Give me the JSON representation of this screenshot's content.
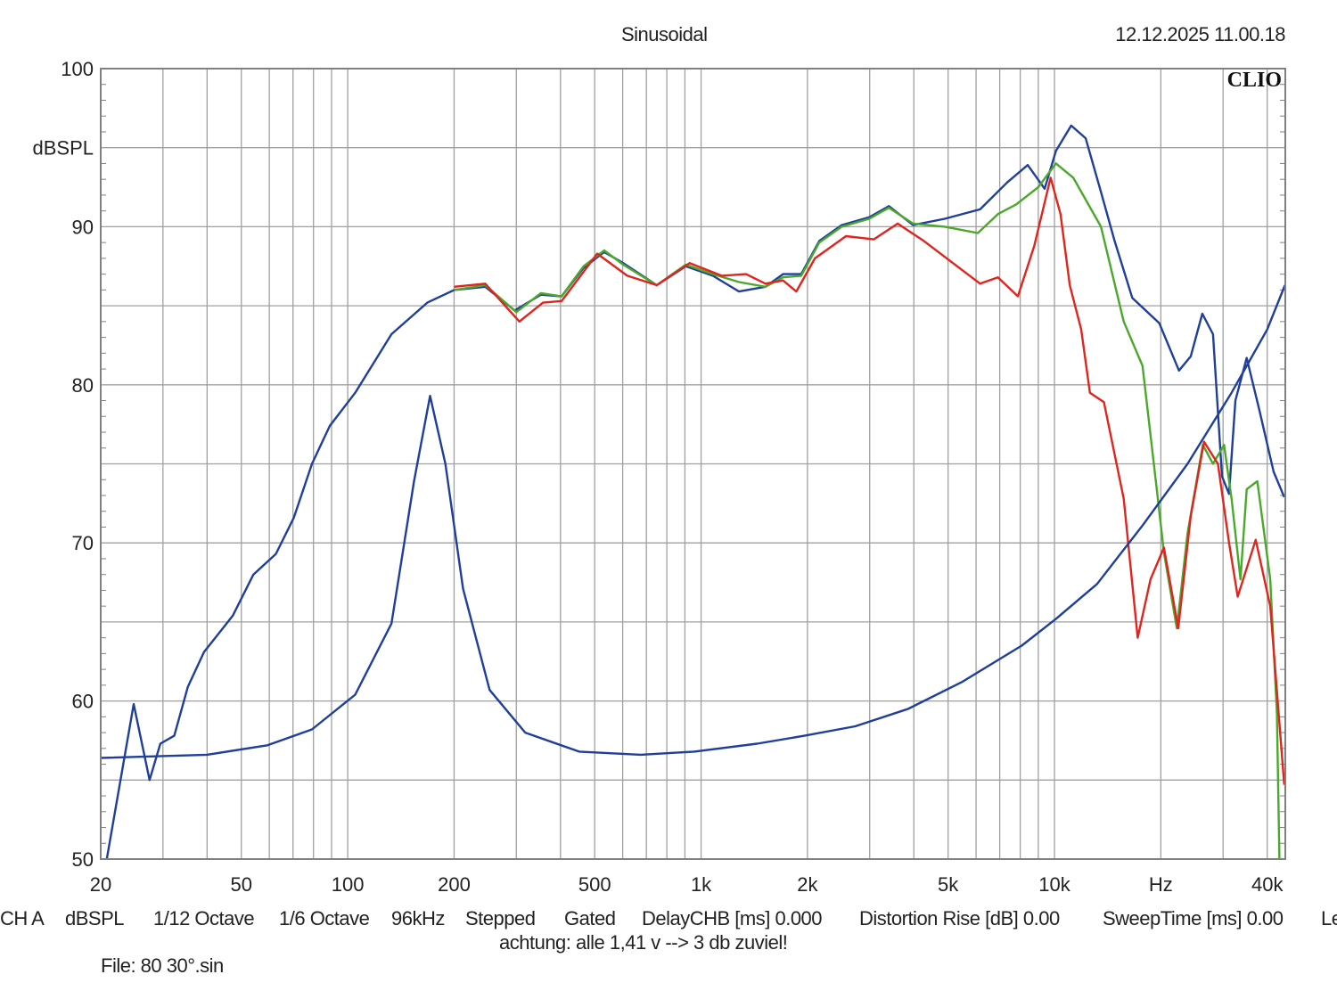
{
  "header": {
    "title": "Sinusoidal",
    "timestamp": "12.12.2025 11.00.18",
    "logo": "CLIO"
  },
  "footer": {
    "items": [
      "CH A",
      "dBSPL",
      "1/12 Octave",
      "1/6 Octave",
      "96kHz",
      "Stepped",
      "Gated",
      "DelayCHB [ms] 0.000",
      "Distortion Rise [dB] 0.00",
      "SweepTime [ms] 0.00",
      "Le"
    ],
    "note": "achtung: alle 1,41 v --> 3 db zuviel!",
    "file": "File: 80 30°.sin"
  },
  "chart_data": {
    "type": "line",
    "title": "Sinusoidal",
    "xlabel": "Hz",
    "ylabel": "dBSPL",
    "xscale": "log",
    "xlim": [
      20,
      45000
    ],
    "ylim": [
      50,
      100
    ],
    "grid": true,
    "x_ticks": [
      {
        "v": 20,
        "label": "20"
      },
      {
        "v": 50,
        "label": "50"
      },
      {
        "v": 100,
        "label": "100"
      },
      {
        "v": 200,
        "label": "200"
      },
      {
        "v": 500,
        "label": "500"
      },
      {
        "v": 1000,
        "label": "1k"
      },
      {
        "v": 2000,
        "label": "2k"
      },
      {
        "v": 5000,
        "label": "5k"
      },
      {
        "v": 10000,
        "label": "10k"
      },
      {
        "v": 20000,
        "label": "Hz"
      },
      {
        "v": 40000,
        "label": "40k"
      }
    ],
    "y_ticks": [
      {
        "v": 100,
        "label": "100"
      },
      {
        "v": 95,
        "label": "dBSPL"
      },
      {
        "v": 90,
        "label": "90"
      },
      {
        "v": 80,
        "label": "80"
      },
      {
        "v": 70,
        "label": "70"
      },
      {
        "v": 60,
        "label": "60"
      },
      {
        "v": 50,
        "label": "50"
      }
    ],
    "colors": {
      "grid": "#a0a0a0",
      "frame": "#808080"
    },
    "series": [
      {
        "name": "response-blue",
        "color": "#1f3f9a",
        "points": [
          [
            20.8,
            50
          ],
          [
            24.8,
            59.8
          ],
          [
            27.5,
            55
          ],
          [
            29.5,
            57.3
          ],
          [
            32.3,
            57.8
          ],
          [
            35.3,
            60.9
          ],
          [
            39.2,
            63.1
          ],
          [
            47.3,
            65.4
          ],
          [
            54.1,
            68
          ],
          [
            62.6,
            69.3
          ],
          [
            70.4,
            71.6
          ],
          [
            79.2,
            75
          ],
          [
            89,
            77.4
          ],
          [
            105,
            79.5
          ],
          [
            133,
            83.2
          ],
          [
            168,
            85.2
          ],
          [
            200,
            86
          ],
          [
            245,
            86.2
          ],
          [
            297,
            84.7
          ],
          [
            352,
            85.7
          ],
          [
            403,
            85.6
          ],
          [
            465,
            87.4
          ],
          [
            532,
            88.4
          ],
          [
            602,
            87.7
          ],
          [
            749,
            86.3
          ],
          [
            905,
            87.5
          ],
          [
            1079,
            86.9
          ],
          [
            1280,
            85.9
          ],
          [
            1520,
            86.2
          ],
          [
            1706,
            87
          ],
          [
            1920,
            87
          ],
          [
            2160,
            89.1
          ],
          [
            2500,
            90.1
          ],
          [
            2990,
            90.6
          ],
          [
            3400,
            91.3
          ],
          [
            3980,
            90.1
          ],
          [
            4890,
            90.5
          ],
          [
            6160,
            91.1
          ],
          [
            7350,
            92.8
          ],
          [
            8400,
            93.9
          ],
          [
            9380,
            92.4
          ],
          [
            10100,
            94.8
          ],
          [
            11150,
            96.4
          ],
          [
            12250,
            95.6
          ],
          [
            13540,
            92.2
          ],
          [
            14800,
            89.1
          ],
          [
            16600,
            85.5
          ],
          [
            19800,
            83.9
          ],
          [
            22500,
            80.9
          ],
          [
            24300,
            81.8
          ],
          [
            26200,
            84.5
          ],
          [
            28100,
            83.2
          ],
          [
            29800,
            74.2
          ],
          [
            31200,
            73.1
          ],
          [
            32500,
            79
          ],
          [
            35000,
            81.7
          ],
          [
            38000,
            78.4
          ],
          [
            41700,
            74.5
          ],
          [
            44700,
            72.9
          ]
        ]
      },
      {
        "name": "response-green",
        "color": "#4aa82a",
        "points": [
          [
            200,
            86
          ],
          [
            245,
            86.3
          ],
          [
            300,
            84.6
          ],
          [
            352,
            85.8
          ],
          [
            403,
            85.6
          ],
          [
            465,
            87.5
          ],
          [
            532,
            88.5
          ],
          [
            602,
            87.6
          ],
          [
            749,
            86.3
          ],
          [
            905,
            87.6
          ],
          [
            1079,
            87
          ],
          [
            1280,
            86.5
          ],
          [
            1520,
            86.2
          ],
          [
            1706,
            86.8
          ],
          [
            1920,
            86.9
          ],
          [
            2160,
            89
          ],
          [
            2500,
            90
          ],
          [
            2990,
            90.5
          ],
          [
            3400,
            91.2
          ],
          [
            3980,
            90.2
          ],
          [
            4890,
            90
          ],
          [
            6070,
            89.6
          ],
          [
            6920,
            90.8
          ],
          [
            7780,
            91.4
          ],
          [
            9000,
            92.5
          ],
          [
            10100,
            94
          ],
          [
            11300,
            93.1
          ],
          [
            13540,
            90
          ],
          [
            15700,
            84
          ],
          [
            17750,
            81.2
          ],
          [
            19500,
            73.3
          ],
          [
            20400,
            69.4
          ],
          [
            22200,
            64.6
          ],
          [
            23800,
            70.6
          ],
          [
            26300,
            76.2
          ],
          [
            28100,
            75
          ],
          [
            30200,
            76.2
          ],
          [
            31700,
            72.8
          ],
          [
            33600,
            67.7
          ],
          [
            35000,
            73.4
          ],
          [
            37500,
            73.9
          ],
          [
            40800,
            67.7
          ],
          [
            42600,
            59.2
          ],
          [
            43300,
            50
          ]
        ]
      },
      {
        "name": "response-red",
        "color": "#e0241e",
        "points": [
          [
            200,
            86.2
          ],
          [
            245,
            86.4
          ],
          [
            306,
            84
          ],
          [
            357,
            85.2
          ],
          [
            403,
            85.3
          ],
          [
            508,
            88.3
          ],
          [
            618,
            86.9
          ],
          [
            749,
            86.3
          ],
          [
            928,
            87.7
          ],
          [
            1144,
            86.9
          ],
          [
            1340,
            87
          ],
          [
            1520,
            86.4
          ],
          [
            1706,
            86.6
          ],
          [
            1860,
            85.9
          ],
          [
            2100,
            88
          ],
          [
            2570,
            89.4
          ],
          [
            3080,
            89.2
          ],
          [
            3600,
            90.2
          ],
          [
            4270,
            89.1
          ],
          [
            5160,
            87.7
          ],
          [
            6160,
            86.4
          ],
          [
            6920,
            86.8
          ],
          [
            7880,
            85.6
          ],
          [
            8770,
            88.8
          ],
          [
            9750,
            93.1
          ],
          [
            10400,
            90.8
          ],
          [
            11050,
            86.3
          ],
          [
            11900,
            83.5
          ],
          [
            12600,
            79.5
          ],
          [
            13800,
            78.9
          ],
          [
            15700,
            72.8
          ],
          [
            17200,
            64
          ],
          [
            18700,
            67.7
          ],
          [
            20400,
            69.7
          ],
          [
            22400,
            64.6
          ],
          [
            24300,
            71.7
          ],
          [
            26500,
            76.4
          ],
          [
            29000,
            75
          ],
          [
            31200,
            70
          ],
          [
            33000,
            66.6
          ],
          [
            37100,
            70.2
          ],
          [
            40800,
            66
          ],
          [
            44700,
            54.7
          ]
        ]
      },
      {
        "name": "impedance-blue",
        "color": "#1f3f9a",
        "points": [
          [
            20,
            56.4
          ],
          [
            40,
            56.6
          ],
          [
            59.3,
            57.2
          ],
          [
            79.2,
            58.2
          ],
          [
            105,
            60.4
          ],
          [
            133,
            64.9
          ],
          [
            154,
            73.9
          ],
          [
            171,
            79.3
          ],
          [
            189,
            75
          ],
          [
            212,
            67.1
          ],
          [
            252,
            60.7
          ],
          [
            318,
            58
          ],
          [
            452,
            56.8
          ],
          [
            675,
            56.6
          ],
          [
            956,
            56.8
          ],
          [
            1440,
            57.3
          ],
          [
            1960,
            57.8
          ],
          [
            2730,
            58.4
          ],
          [
            3850,
            59.5
          ],
          [
            5470,
            61.2
          ],
          [
            8080,
            63.5
          ],
          [
            10100,
            65.2
          ],
          [
            13200,
            67.4
          ],
          [
            17750,
            71.1
          ],
          [
            23800,
            75
          ],
          [
            31700,
            79.5
          ],
          [
            40000,
            83.5
          ],
          [
            44900,
            86.3
          ]
        ]
      }
    ]
  }
}
